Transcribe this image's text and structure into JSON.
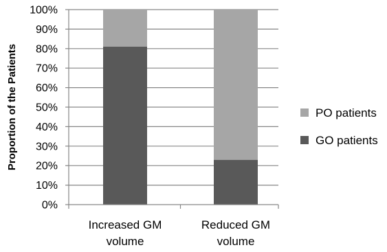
{
  "chart_data": {
    "type": "bar",
    "stacked": true,
    "percent_axis": true,
    "categories": [
      "Increased GM volume",
      "Reduced GM volume"
    ],
    "category_lines": [
      [
        "Increased GM",
        "volume"
      ],
      [
        "Reduced GM",
        "volume"
      ]
    ],
    "series": [
      {
        "name": "GO patients",
        "values": [
          81,
          23
        ],
        "color": "#595959"
      },
      {
        "name": "PO patients",
        "values": [
          19,
          77
        ],
        "color": "#a6a6a6"
      }
    ],
    "yticks": [
      "0%",
      "10%",
      "20%",
      "30%",
      "40%",
      "50%",
      "60%",
      "70%",
      "80%",
      "90%",
      "100%"
    ],
    "ylim": [
      0,
      100
    ],
    "ylabel": "Proportion of the Patients",
    "xlabel": "",
    "title": "",
    "grid": true,
    "legend": {
      "placement": "right",
      "entries": [
        "PO patients",
        "GO patients"
      ]
    }
  }
}
